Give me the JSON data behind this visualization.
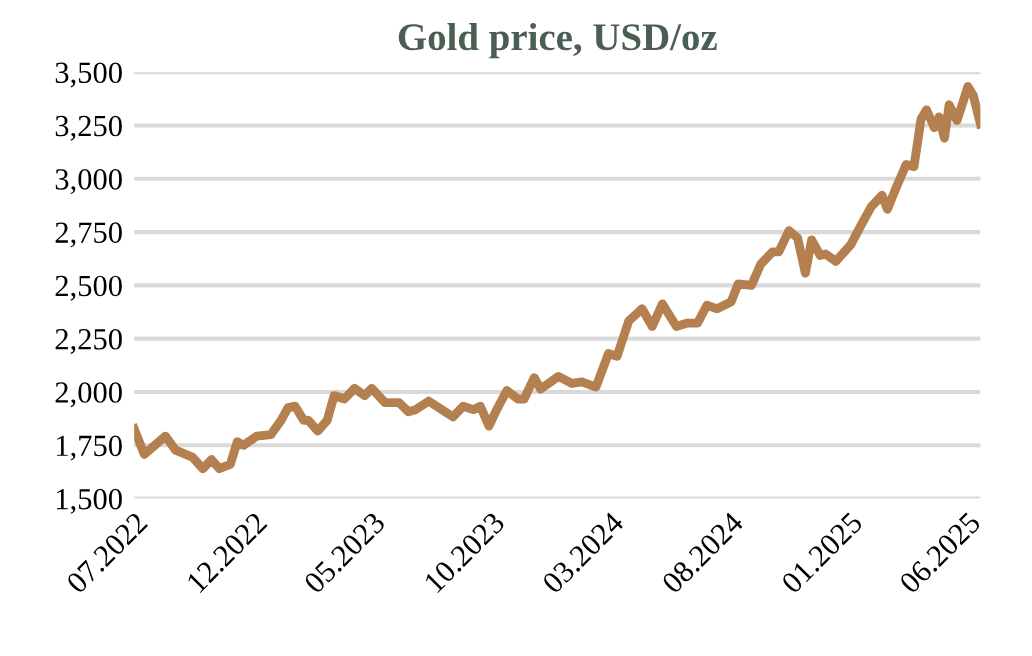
{
  "chart_data": {
    "type": "line",
    "title": "Gold price, USD/oz",
    "x": [
      "2022-07-01",
      "2022-07-14",
      "2022-08-10",
      "2022-08-23",
      "2022-09-14",
      "2022-09-27",
      "2022-10-08",
      "2022-10-18",
      "2022-11-01",
      "2022-11-10",
      "2022-11-18",
      "2022-12-05",
      "2022-12-23",
      "2023-01-05",
      "2023-01-14",
      "2023-01-23",
      "2023-02-03",
      "2023-02-09",
      "2023-02-21",
      "2023-03-05",
      "2023-03-14",
      "2023-03-27",
      "2023-04-09",
      "2023-04-22",
      "2023-05-01",
      "2023-05-18",
      "2023-06-05",
      "2023-06-17",
      "2023-06-26",
      "2023-07-13",
      "2023-07-30",
      "2023-08-13",
      "2023-08-26",
      "2023-09-08",
      "2023-09-17",
      "2023-09-28",
      "2023-10-08",
      "2023-10-21",
      "2023-11-04",
      "2023-11-12",
      "2023-11-25",
      "2023-12-03",
      "2023-12-26",
      "2024-01-12",
      "2024-01-25",
      "2024-02-12",
      "2024-02-28",
      "2024-03-10",
      "2024-03-25",
      "2024-04-11",
      "2024-04-24",
      "2024-05-07",
      "2024-05-25",
      "2024-06-08",
      "2024-06-21",
      "2024-07-03",
      "2024-07-16",
      "2024-08-03",
      "2024-08-12",
      "2024-08-29",
      "2024-09-10",
      "2024-09-25",
      "2024-10-03",
      "2024-10-16",
      "2024-10-27",
      "2024-11-06",
      "2024-11-14",
      "2024-11-25",
      "2024-12-02",
      "2024-12-15",
      "2025-01-03",
      "2025-01-16",
      "2025-01-29",
      "2025-02-12",
      "2025-02-19",
      "2025-03-02",
      "2025-03-15",
      "2025-03-25",
      "2025-04-03",
      "2025-04-10",
      "2025-04-20",
      "2025-04-26",
      "2025-05-03",
      "2025-05-09",
      "2025-05-19",
      "2025-05-25",
      "2025-06-02",
      "2025-06-09",
      "2025-06-18"
    ],
    "series": [
      {
        "color": "#b5804f",
        "values": [
          1827,
          1707,
          1793,
          1727,
          1693,
          1640,
          1683,
          1640,
          1660,
          1767,
          1750,
          1793,
          1800,
          1867,
          1927,
          1933,
          1867,
          1867,
          1817,
          1867,
          1983,
          1967,
          2017,
          1983,
          2017,
          1950,
          1950,
          1907,
          1917,
          1957,
          1917,
          1883,
          1933,
          1917,
          1933,
          1840,
          1917,
          2007,
          1967,
          1967,
          2067,
          2013,
          2073,
          2040,
          2047,
          2023,
          2180,
          2167,
          2333,
          2390,
          2307,
          2413,
          2307,
          2323,
          2323,
          2407,
          2390,
          2423,
          2507,
          2500,
          2600,
          2657,
          2657,
          2757,
          2723,
          2557,
          2713,
          2640,
          2647,
          2613,
          2690,
          2780,
          2867,
          2923,
          2857,
          2957,
          3067,
          3057,
          3280,
          3323,
          3240,
          3290,
          3190,
          3347,
          3273,
          3340,
          3433,
          3390,
          3257
        ]
      }
    ],
    "xlim": [
      "2022-07-01",
      "2025-06-18"
    ],
    "xticks": [
      {
        "value": "2022-07-01",
        "label": "07.2022"
      },
      {
        "value": "2022-12-01",
        "label": "12.2022"
      },
      {
        "value": "2023-05-01",
        "label": "05.2023"
      },
      {
        "value": "2023-10-01",
        "label": "10.2023"
      },
      {
        "value": "2024-03-01",
        "label": "03.2024"
      },
      {
        "value": "2024-08-01",
        "label": "08.2024"
      },
      {
        "value": "2025-01-01",
        "label": "01.2025"
      },
      {
        "value": "2025-06-01",
        "label": "06.2025"
      }
    ],
    "ylim": [
      1500,
      3500
    ],
    "yticks": [
      {
        "value": 1500,
        "label": "1,500"
      },
      {
        "value": 1750,
        "label": "1,750"
      },
      {
        "value": 2000,
        "label": "2,000"
      },
      {
        "value": 2250,
        "label": "2,250"
      },
      {
        "value": 2500,
        "label": "2,500"
      },
      {
        "value": 2750,
        "label": "2,750"
      },
      {
        "value": 3000,
        "label": "3,000"
      },
      {
        "value": 3250,
        "label": "3,250"
      },
      {
        "value": 3500,
        "label": "3,500"
      }
    ],
    "grid": "y",
    "legend": false,
    "marker": "none",
    "line_style": "solid"
  }
}
